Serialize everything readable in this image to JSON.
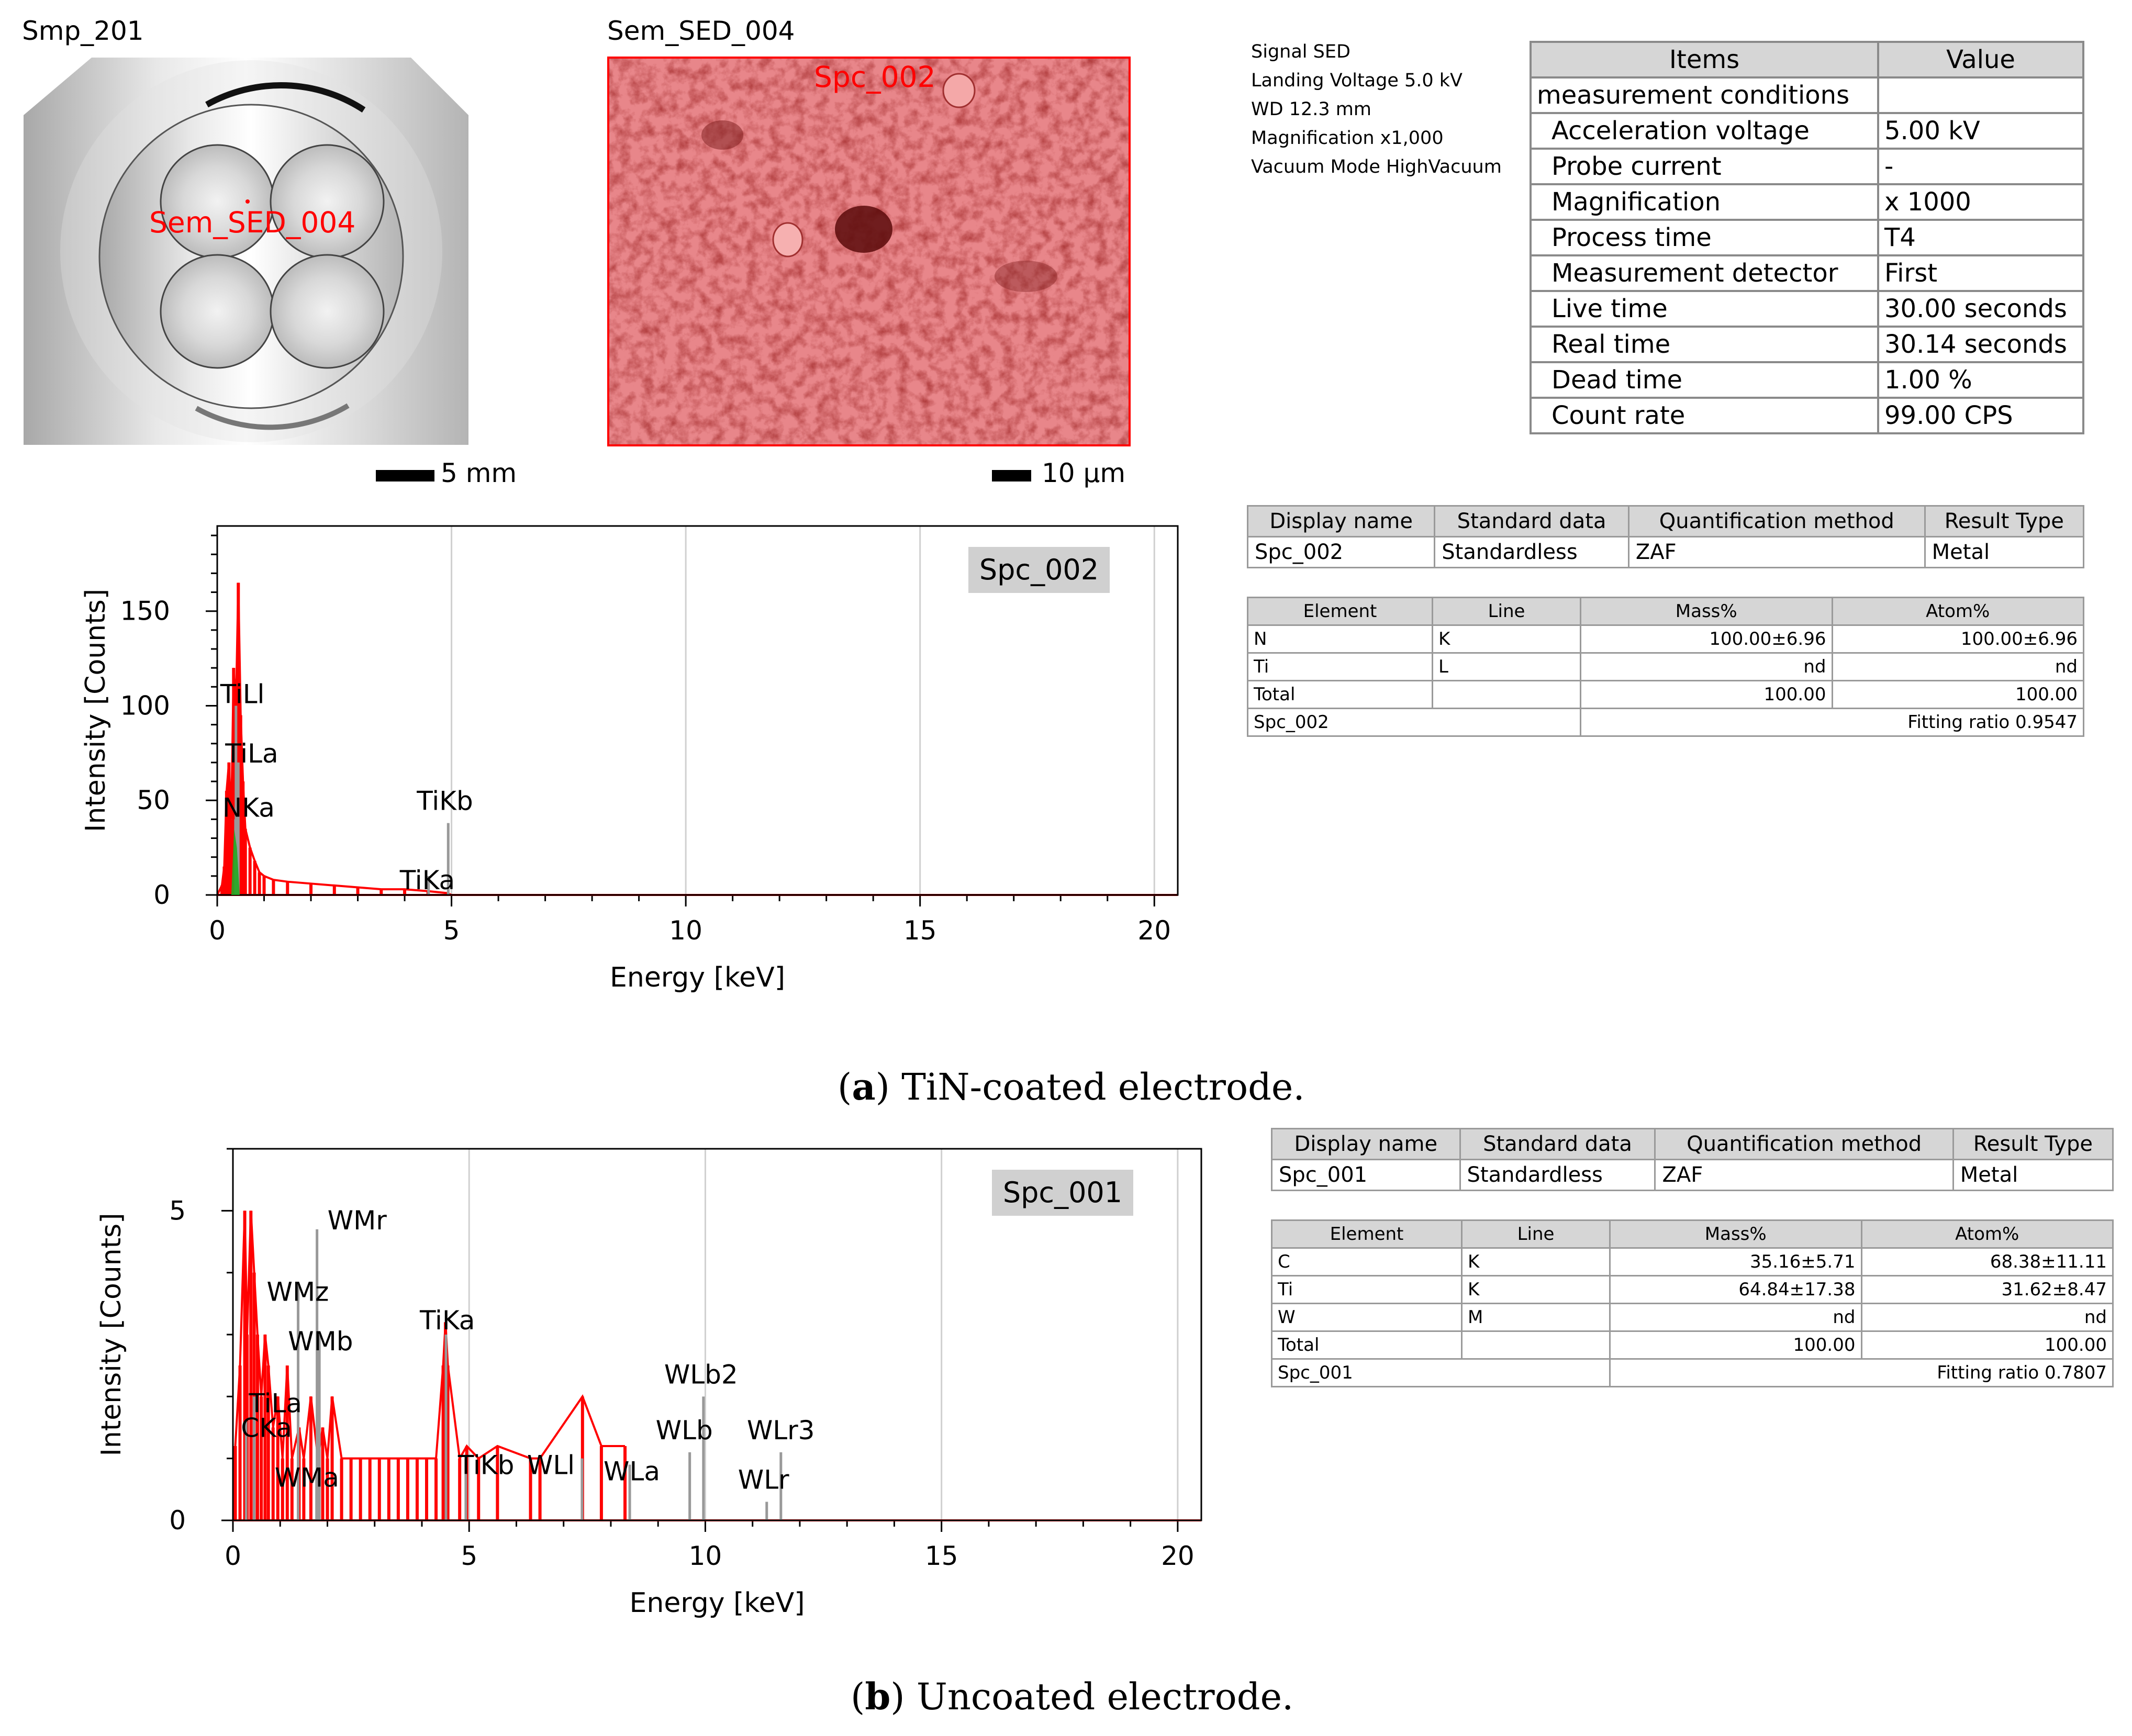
{
  "panel_a": {
    "holder_label": "Smp_201",
    "holder_marker_label": "Sem_SED_004",
    "holder_scalebar": "5 mm",
    "sem_label": "Sem_SED_004",
    "sem_spot_label": "Spc_002",
    "sem_scalebar": "10 µm",
    "sem_meta": [
      "Signal SED",
      "Landing Voltage 5.0 kV",
      "WD 12.3 mm",
      "Magnification x1,000",
      "Vacuum Mode HighVacuum"
    ],
    "conditions": {
      "headers": [
        "Items",
        "Value"
      ],
      "rows": [
        {
          "item": "measurement conditions",
          "value": ""
        },
        {
          "item": "Acceleration voltage",
          "value": "5.00 kV"
        },
        {
          "item": "Probe current",
          "value": "-"
        },
        {
          "item": "Magnification",
          "value": "x 1000"
        },
        {
          "item": "Process time",
          "value": "T4"
        },
        {
          "item": "Measurement detector",
          "value": "First"
        },
        {
          "item": "Live time",
          "value": "30.00 seconds"
        },
        {
          "item": "Real time",
          "value": "30.14 seconds"
        },
        {
          "item": "Dead time",
          "value": "1.00 %"
        },
        {
          "item": "Count rate",
          "value": "99.00 CPS"
        }
      ]
    },
    "summary": {
      "headers": [
        "Display name",
        "Standard data",
        "Quantification method",
        "Result Type"
      ],
      "row": [
        "Spc_002",
        "Standardless",
        "ZAF",
        "Metal"
      ]
    },
    "results": {
      "headers": [
        "Element",
        "Line",
        "Mass%",
        "Atom%"
      ],
      "rows": [
        [
          "N",
          "K",
          "100.00±6.96",
          "100.00±6.96"
        ],
        [
          "Ti",
          "L",
          "nd",
          "nd"
        ],
        [
          "Total",
          "",
          "100.00",
          "100.00"
        ]
      ],
      "footer_name": "Spc_002",
      "footer_fit": "Fitting ratio 0.9547"
    },
    "caption_letter": "a",
    "caption_text": ") TiN-coated electrode."
  },
  "panel_b": {
    "summary": {
      "headers": [
        "Display name",
        "Standard data",
        "Quantification method",
        "Result Type"
      ],
      "row": [
        "Spc_001",
        "Standardless",
        "ZAF",
        "Metal"
      ]
    },
    "results": {
      "headers": [
        "Element",
        "Line",
        "Mass%",
        "Atom%"
      ],
      "rows": [
        [
          "C",
          "K",
          "35.16±5.71",
          "68.38±11.11"
        ],
        [
          "Ti",
          "K",
          "64.84±17.38",
          "31.62±8.47"
        ],
        [
          "W",
          "M",
          "nd",
          "nd"
        ],
        [
          "Total",
          "",
          "100.00",
          "100.00"
        ]
      ],
      "footer_name": "Spc_001",
      "footer_fit": "Fitting ratio 0.7807"
    },
    "caption_letter": "b",
    "caption_text": ") Uncoated electrode."
  },
  "colors": {
    "spectrum": "#ff0000",
    "nka_fill": "#22aa22",
    "marker": "#999999",
    "badge": "#d0d0d0"
  },
  "chart_data": [
    {
      "type": "line",
      "badge": "Spc_002",
      "xlabel": "Energy [keV]",
      "ylabel": "Intensity [Counts]",
      "xlim": [
        0,
        20.5
      ],
      "ylim": [
        0,
        195
      ],
      "xticks": [
        0,
        5,
        10,
        15,
        20
      ],
      "yticks": [
        0,
        50,
        100,
        150
      ],
      "grid": true,
      "series": [
        {
          "x": [
            0,
            0.1,
            0.15,
            0.2,
            0.25,
            0.3,
            0.35,
            0.4,
            0.45,
            0.5,
            0.55,
            0.6,
            0.7,
            0.8,
            0.9,
            1.0,
            1.2,
            1.5,
            2.0,
            2.5,
            3.0,
            3.5,
            4.0,
            4.5,
            4.9,
            5.0,
            20.5
          ],
          "y": [
            0,
            5,
            15,
            55,
            70,
            40,
            120,
            100,
            165,
            95,
            60,
            35,
            25,
            18,
            12,
            10,
            8,
            7,
            6,
            5,
            4,
            3,
            3,
            2,
            1,
            0,
            0
          ]
        }
      ],
      "peak_markers": [
        {
          "label": "TiLl",
          "x": 0.4,
          "height": 100
        },
        {
          "label": "TiLa",
          "x": 0.45,
          "height": 70
        },
        {
          "label": "NKa",
          "x": 0.39,
          "height": 40
        },
        {
          "label": "TiKb",
          "x": 4.93,
          "height": 38
        },
        {
          "label": "TiKa",
          "x": 4.51,
          "height": 10
        }
      ]
    },
    {
      "type": "line",
      "badge": "Spc_001",
      "xlabel": "Energy [keV]",
      "ylabel": "Intensity [Counts]",
      "xlim": [
        0,
        20.5
      ],
      "ylim": [
        0,
        6
      ],
      "xticks": [
        0,
        5,
        10,
        15,
        20
      ],
      "yticks": [
        0,
        5
      ],
      "grid": true,
      "series": [
        {
          "x": [
            0.05,
            0.15,
            0.25,
            0.3,
            0.38,
            0.45,
            0.52,
            0.6,
            0.68,
            0.75,
            0.85,
            0.95,
            1.05,
            1.15,
            1.25,
            1.4,
            1.5,
            1.65,
            1.8,
            1.9,
            2.0,
            2.1,
            2.3,
            2.5,
            2.7,
            2.9,
            3.1,
            3.3,
            3.5,
            3.7,
            3.9,
            4.1,
            4.3,
            4.45,
            4.5,
            4.55,
            4.8,
            4.95,
            5.2,
            5.6,
            6.3,
            6.5,
            7.4,
            7.8,
            8.3
          ],
          "y": [
            1.2,
            2.5,
            5.0,
            3.0,
            5.0,
            4.0,
            3.0,
            2.0,
            3.0,
            2.5,
            1.5,
            2.0,
            1.0,
            2.5,
            1.0,
            1.5,
            1.0,
            2.0,
            1.0,
            1.5,
            1.0,
            2.0,
            1.0,
            1.0,
            1.0,
            1.0,
            1.0,
            1.0,
            1.0,
            1.0,
            1.0,
            1.0,
            1.0,
            2.5,
            3.2,
            2.5,
            1.0,
            1.2,
            1.0,
            1.2,
            1.0,
            1.0,
            2.0,
            1.2,
            1.2
          ]
        }
      ],
      "peak_markers": [
        {
          "label": "WMr",
          "x": 1.78,
          "height": 4.7
        },
        {
          "label": "WMz",
          "x": 1.38,
          "height": 3.8
        },
        {
          "label": "WMb",
          "x": 1.83,
          "height": 3.0
        },
        {
          "label": "TiLa",
          "x": 0.45,
          "height": 2.0
        },
        {
          "label": "CKa",
          "x": 0.28,
          "height": 1.6
        },
        {
          "label": "WMa",
          "x": 1.77,
          "height": 0.8
        },
        {
          "label": "TiKa",
          "x": 4.51,
          "height": 3.0
        },
        {
          "label": "TiKb",
          "x": 4.93,
          "height": 1.0
        },
        {
          "label": "WLl",
          "x": 7.39,
          "height": 1.0
        },
        {
          "label": "WLa",
          "x": 8.4,
          "height": 0.9
        },
        {
          "label": "WLb2",
          "x": 9.96,
          "height": 2.0
        },
        {
          "label": "WLb",
          "x": 9.67,
          "height": 1.1
        },
        {
          "label": "WLr3",
          "x": 11.6,
          "height": 1.1
        },
        {
          "label": "WLr",
          "x": 11.3,
          "height": 0.3
        }
      ]
    }
  ]
}
